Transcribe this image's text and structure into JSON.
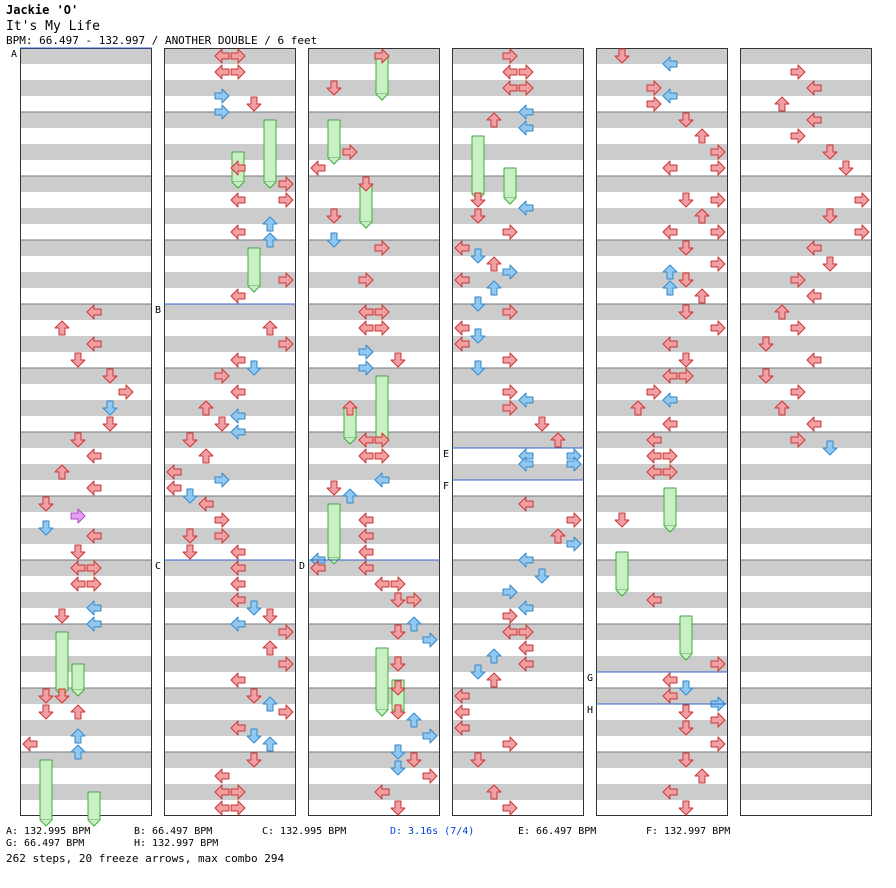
{
  "header": {
    "artist": "Jackie 'O'",
    "title": "It's My Life",
    "meta": "BPM: 66.497 - 132.997 / ANOTHER DOUBLE / 6 feet"
  },
  "section_markers": [
    "A",
    "B",
    "C",
    "D",
    "E",
    "F",
    "G",
    "H"
  ],
  "legend": {
    "row1": [
      "A: 132.995 BPM",
      "B: 66.497 BPM",
      "C: 132.995 BPM",
      "D: 3.16s (7/4)",
      "E: 66.497 BPM",
      "F: 132.997 BPM"
    ],
    "row2": [
      "G: 66.497 BPM",
      "H: 132.997 BPM"
    ]
  },
  "footer": "262 steps, 20 freeze arrows, max combo 294",
  "colors": {
    "stripe_gray": "#cccccc",
    "arrow_red": "#f0a0a0",
    "arrow_blue": "#90c8f0",
    "arrow_pink": "#e8a0f0",
    "freeze_green": "#c8f0c0",
    "marker_line": "#3366cc",
    "legend_accent": "#0044dd"
  },
  "icons": [
    "arrow-left",
    "arrow-down",
    "arrow-up",
    "arrow-right",
    "freeze-arrow"
  ]
}
